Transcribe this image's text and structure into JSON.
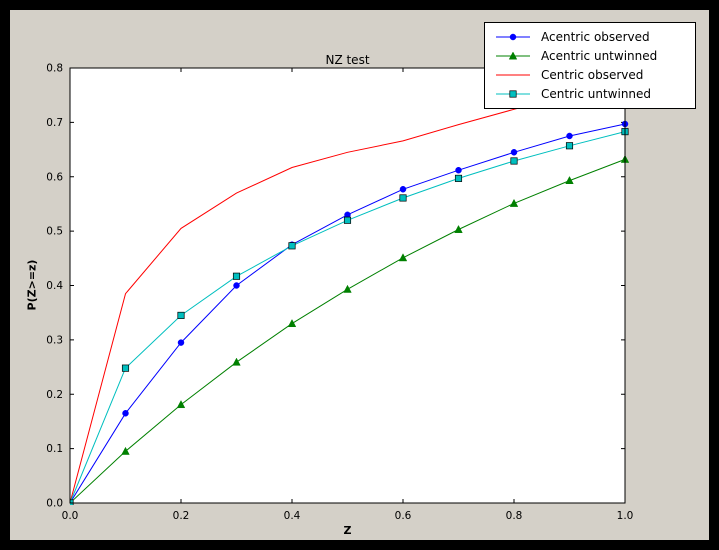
{
  "colors": {
    "window_bg": "#000000",
    "figure_bg": "#d4d0c8",
    "plot_bg": "#ffffff",
    "axis": "#000000"
  },
  "chart_data": {
    "type": "line",
    "title": "NZ test",
    "xlabel": "Z",
    "ylabel": "P(Z>=z)",
    "xlim": [
      0.0,
      1.0
    ],
    "ylim": [
      0.0,
      0.8
    ],
    "xticks": [
      0.0,
      0.2,
      0.4,
      0.6,
      0.8,
      1.0
    ],
    "yticks": [
      0.0,
      0.1,
      0.2,
      0.3,
      0.4,
      0.5,
      0.6,
      0.7,
      0.8
    ],
    "grid": false,
    "legend": {
      "location": "upper right"
    },
    "x": [
      0.0,
      0.1,
      0.2,
      0.3,
      0.4,
      0.5,
      0.6,
      0.7,
      0.8,
      0.9,
      1.0
    ],
    "series": [
      {
        "name": "Acentric observed",
        "color": "#0000ff",
        "marker": "circle",
        "values": [
          0.0,
          0.165,
          0.295,
          0.4,
          0.475,
          0.53,
          0.577,
          0.612,
          0.645,
          0.675,
          0.697
        ]
      },
      {
        "name": "Acentric untwinned",
        "color": "#008000",
        "marker": "triangle",
        "values": [
          0.0,
          0.095,
          0.181,
          0.259,
          0.33,
          0.393,
          0.451,
          0.503,
          0.551,
          0.593,
          0.632
        ]
      },
      {
        "name": "Centric observed",
        "color": "#ff0000",
        "marker": "none",
        "values": [
          0.0,
          0.385,
          0.505,
          0.57,
          0.617,
          0.645,
          0.666,
          0.696,
          0.724,
          0.75,
          0.766
        ]
      },
      {
        "name": "Centric untwinned",
        "color": "#00bfbf",
        "marker": "square",
        "values": [
          0.0,
          0.248,
          0.345,
          0.417,
          0.473,
          0.52,
          0.561,
          0.597,
          0.629,
          0.657,
          0.683
        ]
      }
    ]
  }
}
